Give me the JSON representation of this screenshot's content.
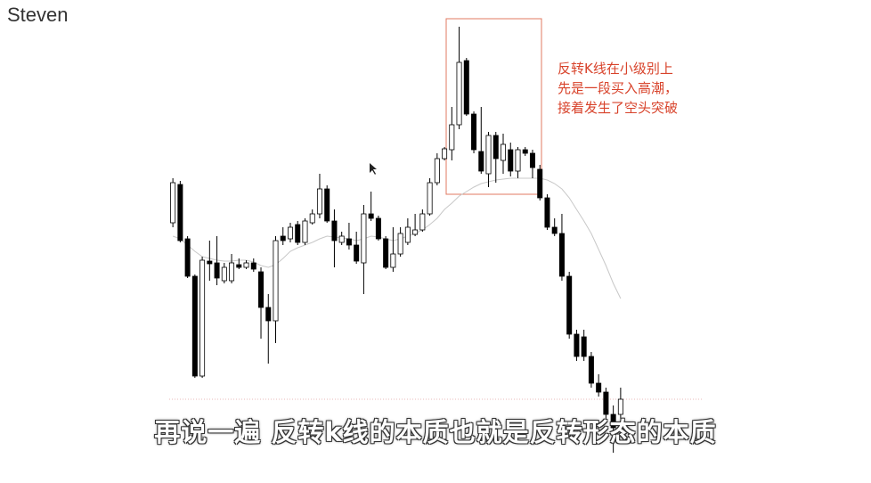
{
  "header": {
    "title": "Steven"
  },
  "chart_data": {
    "type": "candlestick",
    "open": [
      250,
      293,
      232,
      190,
      78,
      207,
      205,
      185,
      185,
      203,
      200,
      205,
      195,
      155,
      140,
      235,
      232,
      248,
      228,
      250,
      260,
      288,
      252,
      228,
      232,
      225,
      205,
      260,
      255,
      232,
      200,
      215,
      228,
      237,
      242,
      260,
      295,
      322,
      332,
      360,
      432,
      372,
      330,
      305,
      348,
      320,
      332,
      308,
      332,
      328,
      310,
      278,
      245,
      238,
      190,
      125,
      122,
      100,
      70,
      60,
      35,
      35
    ],
    "high": [
      300,
      297,
      235,
      192,
      212,
      230,
      235,
      205,
      215,
      210,
      208,
      210,
      200,
      170,
      235,
      245,
      250,
      252,
      255,
      265,
      305,
      292,
      265,
      240,
      250,
      240,
      270,
      285,
      258,
      235,
      245,
      245,
      255,
      260,
      265,
      300,
      328,
      335,
      380,
      470,
      435,
      375,
      380,
      352,
      352,
      350,
      340,
      335,
      335,
      332,
      315,
      282,
      255,
      260,
      195,
      130,
      130,
      105,
      80,
      65,
      45,
      65
    ],
    "low": [
      245,
      228,
      188,
      76,
      76,
      185,
      180,
      182,
      182,
      198,
      198,
      195,
      120,
      92,
      115,
      225,
      228,
      225,
      225,
      248,
      255,
      250,
      200,
      225,
      220,
      204,
      170,
      252,
      230,
      198,
      195,
      212,
      225,
      235,
      240,
      258,
      292,
      320,
      320,
      355,
      370,
      328,
      305,
      290,
      295,
      305,
      302,
      300,
      325,
      300,
      275,
      242,
      235,
      185,
      120,
      95,
      95,
      65,
      55,
      30,
      -8,
      30
    ],
    "close": [
      295,
      230,
      190,
      78,
      208,
      204,
      188,
      200,
      205,
      200,
      205,
      198,
      155,
      140,
      230,
      230,
      245,
      228,
      252,
      260,
      288,
      252,
      230,
      235,
      225,
      207,
      260,
      255,
      232,
      200,
      215,
      238,
      245,
      242,
      260,
      295,
      322,
      333,
      360,
      430,
      372,
      332,
      308,
      348,
      322,
      338,
      308,
      332,
      328,
      312,
      278,
      245,
      238,
      190,
      125,
      100,
      100,
      70,
      60,
      35,
      20,
      52
    ],
    "ma_values": [
      235,
      232,
      225,
      218,
      212,
      210,
      208,
      207,
      207,
      208,
      208,
      206,
      202,
      200,
      203,
      210,
      218,
      222,
      225,
      228,
      232,
      235,
      234,
      233,
      232,
      230,
      232,
      235,
      234,
      232,
      230,
      232,
      235,
      238,
      242,
      248,
      255,
      265,
      272,
      280,
      285,
      290,
      294,
      296,
      298,
      299,
      300,
      300,
      300,
      300,
      300,
      298,
      294,
      288,
      278,
      265,
      252,
      238,
      220,
      202,
      182,
      165
    ],
    "ylim": [
      -10,
      500
    ],
    "up_color": "#ffffff",
    "down_color": "#000000",
    "ma_color": "#c8c8c8",
    "annotation": [
      "反转K线在小级别上",
      "先是一段买入高潮，",
      "接着发生了空头突破"
    ]
  },
  "caption": "再说一遍 反转k线的本质也就是反转形态的本质"
}
